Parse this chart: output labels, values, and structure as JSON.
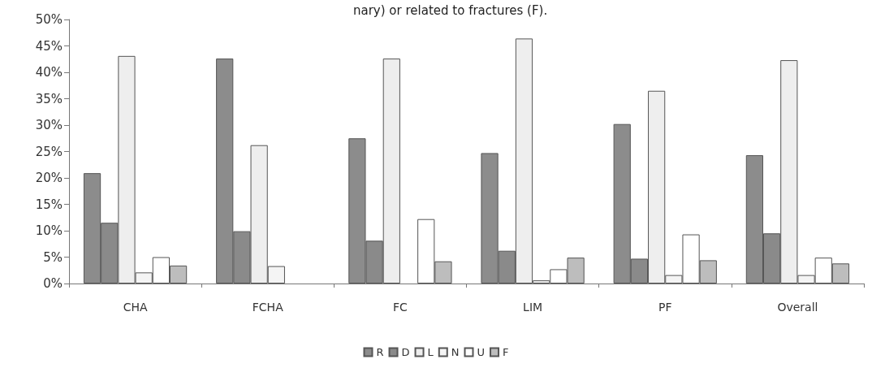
{
  "chart_data": {
    "type": "bar",
    "title": "nary) or related to fractures (F).",
    "categories": [
      "CHA",
      "FCHA",
      "FC",
      "LIM",
      "PF",
      "Overall"
    ],
    "series": [
      {
        "name": "R",
        "color": "#8c8c8c",
        "values": [
          20.9,
          42.6,
          27.5,
          24.7,
          30.2,
          24.3
        ]
      },
      {
        "name": "D",
        "color": "#8a8a8a",
        "values": [
          11.5,
          9.9,
          8.1,
          6.2,
          4.7,
          9.5
        ]
      },
      {
        "name": "L",
        "color": "#eeeeee",
        "values": [
          43.1,
          26.2,
          42.6,
          46.4,
          36.5,
          42.3
        ]
      },
      {
        "name": "N",
        "color": "#f4f4f4",
        "values": [
          2.1,
          3.3,
          0,
          0.6,
          1.6,
          1.6
        ]
      },
      {
        "name": "U",
        "color": "#ffffff",
        "values": [
          5.0,
          0,
          12.2,
          2.7,
          9.3,
          4.9
        ]
      },
      {
        "name": "F",
        "color": "#bdbdbd",
        "values": [
          3.4,
          0,
          4.2,
          4.9,
          4.4,
          3.8
        ]
      }
    ],
    "ylim": [
      0,
      50
    ],
    "yticks": [
      {
        "value": 0,
        "label": "0%"
      },
      {
        "value": 5,
        "label": "5%"
      },
      {
        "value": 10,
        "label": "10%"
      },
      {
        "value": 15,
        "label": "15%"
      },
      {
        "value": 20,
        "label": "20%"
      },
      {
        "value": 25,
        "label": "25%"
      },
      {
        "value": 30,
        "label": "30%"
      },
      {
        "value": 35,
        "label": "35%"
      },
      {
        "value": 40,
        "label": "40%"
      },
      {
        "value": 45,
        "label": "45%"
      },
      {
        "value": 50,
        "label": "50%"
      }
    ],
    "grid": false,
    "legend": "bottom"
  }
}
